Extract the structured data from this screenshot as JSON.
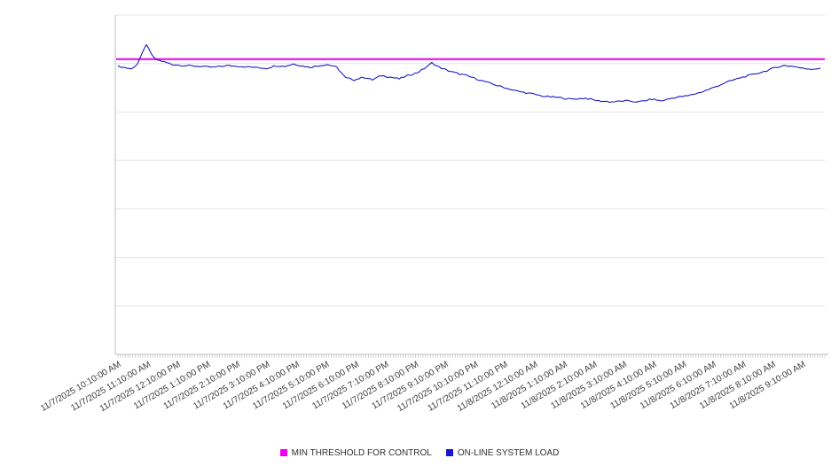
{
  "window": {
    "background": "#ffffff"
  },
  "chart_data": {
    "type": "line",
    "title": "",
    "xlabel": "",
    "ylabel": "",
    "grid": "horizontal",
    "legend_position": "bottom-center",
    "x_axis": {
      "unit": "datetime",
      "span_hours": 23.75,
      "minor_tick_interval_minutes": 5,
      "tick_labels": [
        "11/7/2025 10:10:00 AM",
        "11/7/2025 11:10:00 AM",
        "11/7/2025 12:10:00 PM",
        "11/7/2025 1:10:00 PM",
        "11/7/2025 2:10:00 PM",
        "11/7/2025 3:10:00 PM",
        "11/7/2025 4:10:00 PM",
        "11/7/2025 5:10:00 PM",
        "11/7/2025 6:10:00 PM",
        "11/7/2025 7:10:00 PM",
        "11/7/2025 8:10:00 PM",
        "11/7/2025 9:10:00 PM",
        "11/7/2025 10:10:00 PM",
        "11/7/2025 11:10:00 PM",
        "11/8/2025 12:10:00 AM",
        "11/8/2025 1:10:00 AM",
        "11/8/2025 2:10:00 AM",
        "11/8/2025 3:10:00 AM",
        "11/8/2025 4:10:00 AM",
        "11/8/2025 5:10:00 AM",
        "11/8/2025 6:10:00 AM",
        "11/8/2025 7:10:00 AM",
        "11/8/2025 8:10:00 AM",
        "11/8/2025 9:10:00 AM"
      ]
    },
    "y_axis": {
      "min": 0,
      "max": 100,
      "labels_visible": false,
      "gridlines": 7
    },
    "series": [
      {
        "name": "MIN THRESHOLD FOR CONTROL",
        "type": "constant-line",
        "color": "#ee00ee",
        "value": 87.0
      },
      {
        "name": "ON-LINE SYSTEM LOAD",
        "type": "line",
        "color": "#1a1ac8",
        "x_unit": "hours_from_start",
        "points": [
          [
            0.0,
            84.9
          ],
          [
            0.2,
            84.6
          ],
          [
            0.45,
            84.1
          ],
          [
            0.65,
            85.6
          ],
          [
            0.8,
            88.3
          ],
          [
            0.95,
            91.4
          ],
          [
            1.1,
            88.8
          ],
          [
            1.25,
            87.0
          ],
          [
            1.55,
            86.2
          ],
          [
            1.85,
            85.4
          ],
          [
            2.3,
            85.1
          ],
          [
            2.75,
            84.9
          ],
          [
            3.2,
            84.6
          ],
          [
            3.65,
            85.1
          ],
          [
            4.1,
            84.9
          ],
          [
            4.55,
            84.6
          ],
          [
            5.0,
            84.3
          ],
          [
            5.3,
            85.1
          ],
          [
            5.6,
            84.9
          ],
          [
            5.9,
            85.6
          ],
          [
            6.15,
            85.1
          ],
          [
            6.45,
            84.6
          ],
          [
            6.75,
            85.1
          ],
          [
            7.05,
            85.4
          ],
          [
            7.35,
            84.6
          ],
          [
            7.65,
            81.5
          ],
          [
            7.95,
            80.9
          ],
          [
            8.25,
            81.7
          ],
          [
            8.55,
            80.9
          ],
          [
            8.85,
            82.2
          ],
          [
            9.15,
            81.7
          ],
          [
            9.45,
            81.2
          ],
          [
            9.75,
            82.2
          ],
          [
            10.05,
            83.0
          ],
          [
            10.35,
            84.6
          ],
          [
            10.55,
            85.9
          ],
          [
            10.8,
            84.6
          ],
          [
            11.1,
            83.6
          ],
          [
            11.4,
            82.8
          ],
          [
            11.7,
            82.2
          ],
          [
            12.15,
            80.9
          ],
          [
            12.6,
            79.6
          ],
          [
            13.0,
            78.6
          ],
          [
            13.45,
            77.5
          ],
          [
            13.9,
            76.8
          ],
          [
            14.35,
            76.0
          ],
          [
            14.8,
            75.7
          ],
          [
            15.25,
            75.2
          ],
          [
            15.7,
            75.5
          ],
          [
            16.15,
            74.7
          ],
          [
            16.6,
            74.4
          ],
          [
            17.05,
            74.7
          ],
          [
            17.5,
            74.4
          ],
          [
            17.95,
            75.2
          ],
          [
            18.25,
            74.7
          ],
          [
            18.7,
            75.7
          ],
          [
            19.15,
            76.2
          ],
          [
            19.6,
            77.3
          ],
          [
            20.0,
            78.6
          ],
          [
            20.45,
            80.2
          ],
          [
            20.9,
            81.5
          ],
          [
            21.35,
            82.5
          ],
          [
            21.8,
            83.6
          ],
          [
            22.1,
            84.6
          ],
          [
            22.4,
            85.1
          ],
          [
            22.7,
            84.9
          ],
          [
            23.0,
            84.3
          ],
          [
            23.3,
            84.1
          ],
          [
            23.6,
            84.3
          ]
        ]
      }
    ]
  },
  "style": {
    "gridline_color": "#e4e4e4",
    "axis_color": "#bdbdbd",
    "tick_color": "#c8c8c8",
    "label_color": "#3d3d3d"
  }
}
